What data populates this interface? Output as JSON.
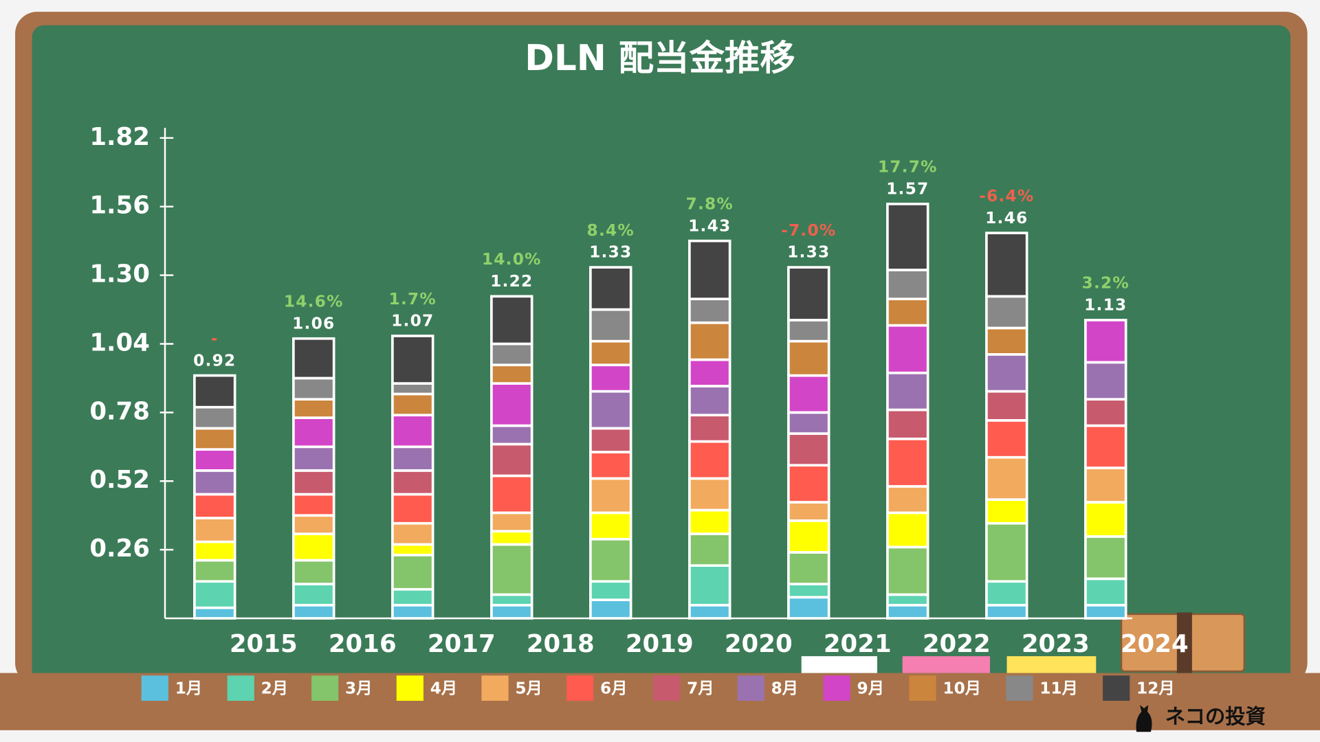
{
  "chart_data": {
    "type": "stacked-bar",
    "title": "DLN 配当金推移",
    "categories": [
      "2015",
      "2016",
      "2017",
      "2018",
      "2019",
      "2020",
      "2021",
      "2022",
      "2023",
      "2024"
    ],
    "series": [
      {
        "name": "1月",
        "color": "#5bc0de",
        "values": [
          0.04,
          0.05,
          0.05,
          0.05,
          0.07,
          0.05,
          0.08,
          0.05,
          0.05,
          0.05
        ]
      },
      {
        "name": "2月",
        "color": "#5dd3b0",
        "values": [
          0.1,
          0.08,
          0.06,
          0.04,
          0.07,
          0.15,
          0.05,
          0.04,
          0.09,
          0.1
        ]
      },
      {
        "name": "3月",
        "color": "#84c46a",
        "values": [
          0.08,
          0.09,
          0.13,
          0.19,
          0.16,
          0.12,
          0.12,
          0.18,
          0.22,
          0.16
        ]
      },
      {
        "name": "4月",
        "color": "#ffff00",
        "values": [
          0.07,
          0.1,
          0.04,
          0.05,
          0.1,
          0.09,
          0.12,
          0.13,
          0.09,
          0.13
        ]
      },
      {
        "name": "5月",
        "color": "#f2aa5e",
        "values": [
          0.09,
          0.07,
          0.08,
          0.07,
          0.13,
          0.12,
          0.07,
          0.1,
          0.16,
          0.13
        ]
      },
      {
        "name": "6月",
        "color": "#ff5b4f",
        "values": [
          0.09,
          0.08,
          0.11,
          0.14,
          0.1,
          0.14,
          0.14,
          0.18,
          0.14,
          0.16
        ]
      },
      {
        "name": "7月",
        "color": "#c85a6e",
        "values": [
          0,
          0.09,
          0.09,
          0.12,
          0.09,
          0.1,
          0.12,
          0.11,
          0.11,
          0.1
        ]
      },
      {
        "name": "8月",
        "color": "#9b72b0",
        "values": [
          0.09,
          0.09,
          0.09,
          0.07,
          0.14,
          0.11,
          0.08,
          0.14,
          0.14,
          0.14
        ]
      },
      {
        "name": "9月",
        "color": "#d345c7",
        "values": [
          0.08,
          0.11,
          0.12,
          0.16,
          0.1,
          0.1,
          0.14,
          0.18,
          0,
          0.16
        ]
      },
      {
        "name": "10月",
        "color": "#cc853d",
        "values": [
          0.08,
          0.07,
          0.08,
          0.07,
          0.09,
          0.14,
          0.13,
          0.1,
          0.1,
          null
        ]
      },
      {
        "name": "11月",
        "color": "#888888",
        "values": [
          0.08,
          0.08,
          0.04,
          0.08,
          0.12,
          0.09,
          0.08,
          0.11,
          0.12,
          null
        ]
      },
      {
        "name": "12月",
        "color": "#444444",
        "values": [
          0.12,
          0.15,
          0.18,
          0.18,
          0.16,
          0.22,
          0.2,
          0.25,
          0.24,
          null
        ]
      }
    ],
    "totals": [
      0.92,
      1.06,
      1.07,
      1.22,
      1.33,
      1.43,
      1.33,
      1.57,
      1.46,
      1.13
    ],
    "growth_labels": [
      "-",
      "14.6%",
      "1.7%",
      "14.0%",
      "8.4%",
      "7.8%",
      "-7.0%",
      "17.7%",
      "-6.4%",
      "3.2%"
    ],
    "ylim": [
      0,
      1.82
    ],
    "yticks": [
      0.26,
      0.52,
      0.78,
      1.04,
      {
        "value": 1.3,
        "label": "1.30"
      },
      1.56,
      1.82
    ],
    "watermark": "ネコの投資"
  }
}
